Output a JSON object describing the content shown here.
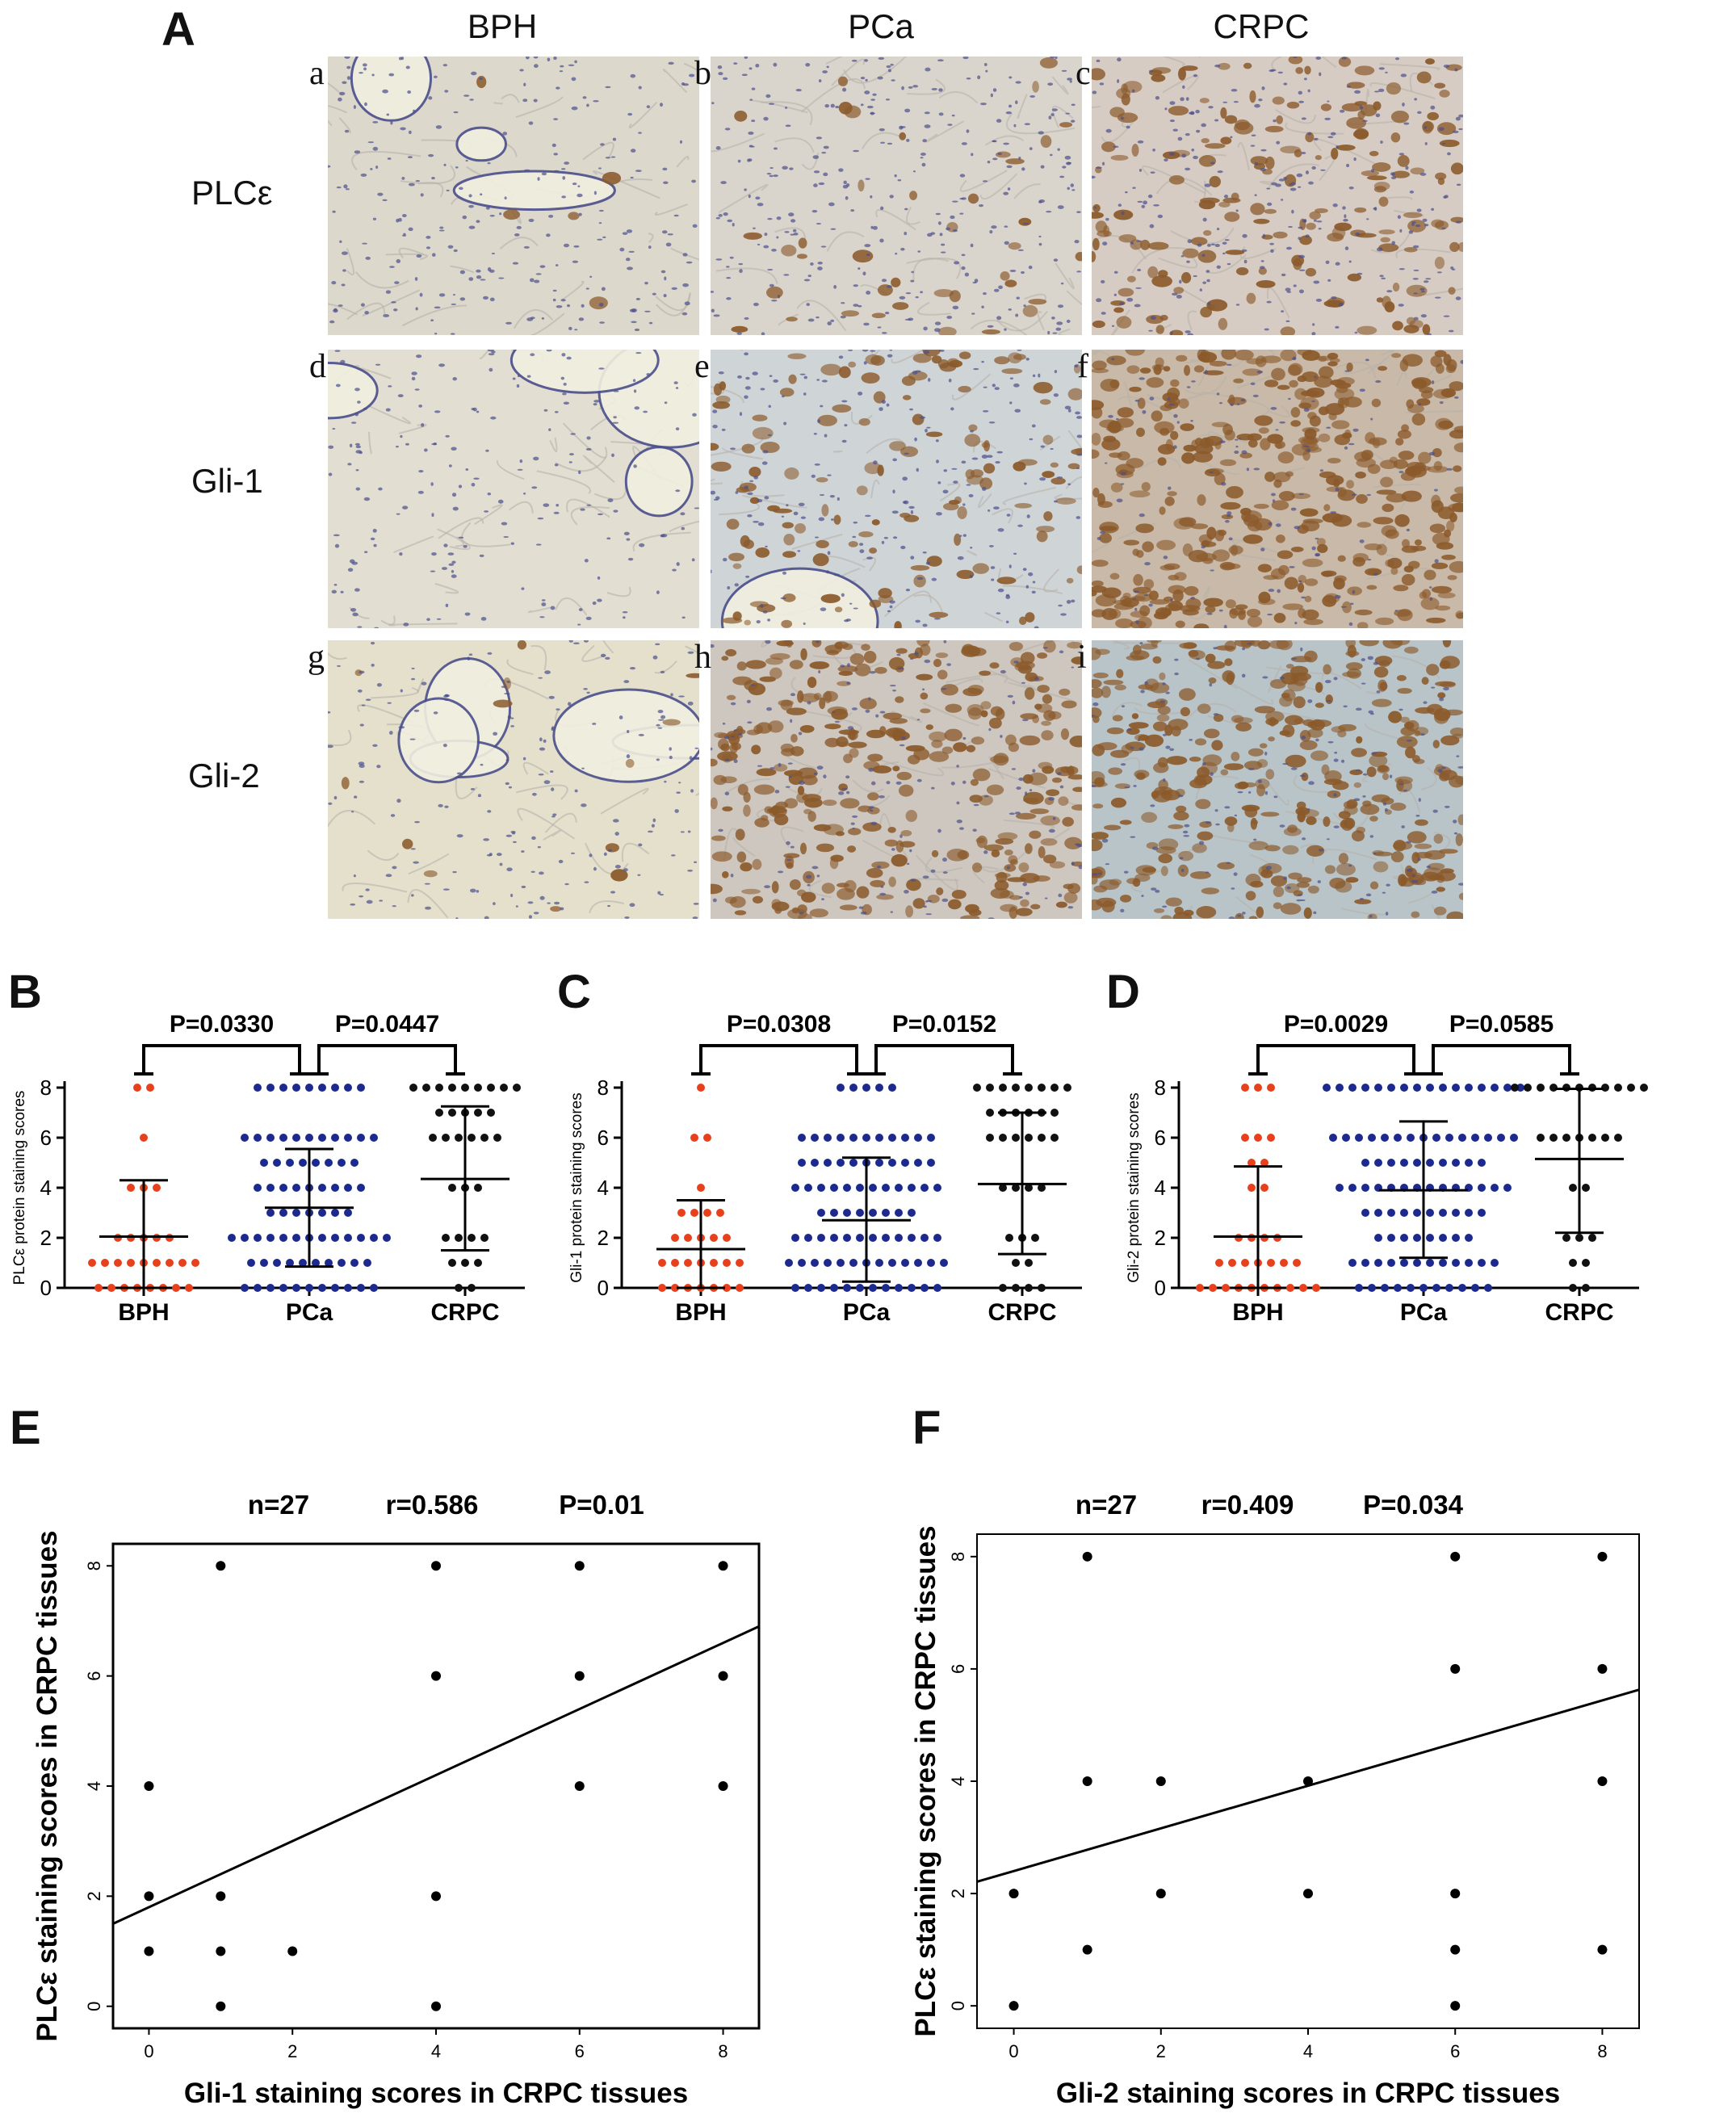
{
  "figure_A": {
    "panel_letter": "A",
    "columns": [
      "BPH",
      "PCa",
      "CRPC"
    ],
    "rows": [
      "PLCε",
      "Gli-1",
      "Gli-2"
    ],
    "sub_letters": [
      "a",
      "b",
      "c",
      "d",
      "e",
      "f",
      "g",
      "h",
      "i"
    ],
    "colors": {
      "tissue_bg": "#e6e2d8",
      "hematoxylin": "#4b4f8c",
      "dab": "#8b5a2b"
    }
  },
  "panels": {
    "B": {
      "letter": "B"
    },
    "C": {
      "letter": "C"
    },
    "D": {
      "letter": "D"
    },
    "E": {
      "letter": "E"
    },
    "F": {
      "letter": "F"
    }
  },
  "chart_data": [
    {
      "id": "B",
      "type": "scatter",
      "ylabel": "PLCε protein staining scores",
      "categories": [
        "BPH",
        "PCa",
        "CRPC"
      ],
      "ylim": [
        0,
        8
      ],
      "yticks": [
        0,
        2,
        4,
        6,
        8
      ],
      "colors": [
        "#e8401c",
        "#1b2a8c",
        "#111111"
      ],
      "means": [
        2.05,
        3.2,
        4.35
      ],
      "sd_low": [
        0.0,
        0.85,
        1.5
      ],
      "sd_high": [
        4.3,
        5.55,
        7.25
      ],
      "points": [
        [
          [
            8,
            2
          ],
          [
            6,
            1
          ],
          [
            4,
            3
          ],
          [
            2,
            5
          ],
          [
            1,
            9
          ],
          [
            0,
            8
          ]
        ],
        [
          [
            8,
            9
          ],
          [
            6,
            11
          ],
          [
            5,
            8
          ],
          [
            4,
            9
          ],
          [
            3,
            7
          ],
          [
            2,
            13
          ],
          [
            1,
            10
          ],
          [
            0,
            11
          ]
        ],
        [
          [
            8,
            9
          ],
          [
            7,
            5
          ],
          [
            6,
            6
          ],
          [
            4,
            3
          ],
          [
            2,
            4
          ],
          [
            1,
            3
          ],
          [
            0,
            2
          ]
        ]
      ],
      "brackets": [
        {
          "from": 0,
          "to": 1,
          "label": "P=0.0330"
        },
        {
          "from": 1,
          "to": 2,
          "label": "P=0.0447"
        }
      ]
    },
    {
      "id": "C",
      "type": "scatter",
      "ylabel": "Gli-1 protein staining scores",
      "categories": [
        "BPH",
        "PCa",
        "CRPC"
      ],
      "ylim": [
        0,
        8
      ],
      "yticks": [
        0,
        2,
        4,
        6,
        8
      ],
      "colors": [
        "#e8401c",
        "#1b2a8c",
        "#111111"
      ],
      "means": [
        1.55,
        2.7,
        4.15
      ],
      "sd_low": [
        0.0,
        0.25,
        1.35
      ],
      "sd_high": [
        3.5,
        5.2,
        7.0
      ],
      "points": [
        [
          [
            8,
            1
          ],
          [
            6,
            2
          ],
          [
            4,
            1
          ],
          [
            3,
            4
          ],
          [
            2,
            5
          ],
          [
            1,
            7
          ],
          [
            0,
            7
          ]
        ],
        [
          [
            8,
            5
          ],
          [
            6,
            11
          ],
          [
            5,
            11
          ],
          [
            4,
            12
          ],
          [
            3,
            8
          ],
          [
            2,
            12
          ],
          [
            1,
            13
          ],
          [
            0,
            12
          ]
        ],
        [
          [
            8,
            8
          ],
          [
            7,
            6
          ],
          [
            6,
            6
          ],
          [
            4,
            4
          ],
          [
            2,
            3
          ],
          [
            1,
            2
          ],
          [
            0,
            4
          ]
        ]
      ],
      "brackets": [
        {
          "from": 0,
          "to": 1,
          "label": "P=0.0308"
        },
        {
          "from": 1,
          "to": 2,
          "label": "P=0.0152"
        }
      ]
    },
    {
      "id": "D",
      "type": "scatter",
      "ylabel": "Gli-2 protein staining scores",
      "categories": [
        "BPH",
        "PCa",
        "CRPC"
      ],
      "ylim": [
        0,
        8
      ],
      "yticks": [
        0,
        2,
        4,
        6,
        8
      ],
      "colors": [
        "#e8401c",
        "#1b2a8c",
        "#111111"
      ],
      "means": [
        2.05,
        3.9,
        5.15
      ],
      "sd_low": [
        0.0,
        1.2,
        2.2
      ],
      "sd_high": [
        4.85,
        6.65,
        7.95
      ],
      "points": [
        [
          [
            8,
            3
          ],
          [
            6,
            3
          ],
          [
            5,
            2
          ],
          [
            4,
            2
          ],
          [
            2,
            4
          ],
          [
            1,
            7
          ],
          [
            0,
            10
          ]
        ],
        [
          [
            8,
            16
          ],
          [
            6,
            15
          ],
          [
            5,
            10
          ],
          [
            4,
            14
          ],
          [
            3,
            10
          ],
          [
            2,
            8
          ],
          [
            1,
            12
          ],
          [
            0,
            11
          ]
        ],
        [
          [
            8,
            11
          ],
          [
            6,
            7
          ],
          [
            4,
            2
          ],
          [
            2,
            3
          ],
          [
            1,
            2
          ],
          [
            0,
            2
          ]
        ]
      ],
      "brackets": [
        {
          "from": 0,
          "to": 1,
          "label": "P=0.0029"
        },
        {
          "from": 1,
          "to": 2,
          "label": "P=0.0585"
        }
      ]
    },
    {
      "id": "E",
      "type": "scatter",
      "xlabel": "Gli-1 staining scores in CRPC tissues",
      "ylabel": "PLCε staining scores in CRPC tissues",
      "xlim": [
        -0.5,
        8.5
      ],
      "ylim": [
        -0.4,
        8.4
      ],
      "xticks": [
        0,
        2,
        4,
        6,
        8
      ],
      "yticks": [
        0,
        2,
        4,
        6,
        8
      ],
      "stats": [
        "n=27",
        "r=0.586",
        "P=0.01"
      ],
      "points": [
        [
          0,
          4
        ],
        [
          0,
          2
        ],
        [
          0,
          1
        ],
        [
          1,
          8
        ],
        [
          1,
          2
        ],
        [
          1,
          1
        ],
        [
          1,
          0
        ],
        [
          2,
          1
        ],
        [
          4,
          8
        ],
        [
          4,
          6
        ],
        [
          4,
          2
        ],
        [
          4,
          0
        ],
        [
          6,
          8
        ],
        [
          6,
          6
        ],
        [
          6,
          4
        ],
        [
          8,
          8
        ],
        [
          8,
          6
        ],
        [
          8,
          4
        ]
      ],
      "fit": {
        "intercept": 1.8,
        "slope": 0.6
      }
    },
    {
      "id": "F",
      "type": "scatter",
      "xlabel": "Gli-2 staining scores in CRPC tissues",
      "ylabel": "PLCε staining scores in CRPC tissues",
      "xlim": [
        -0.5,
        8.5
      ],
      "ylim": [
        -0.4,
        8.4
      ],
      "xticks": [
        0,
        2,
        4,
        6,
        8
      ],
      "yticks": [
        0,
        2,
        4,
        6,
        8
      ],
      "stats": [
        "n=27",
        "r=0.409",
        "P=0.034"
      ],
      "points": [
        [
          0,
          2
        ],
        [
          0,
          0
        ],
        [
          1,
          8
        ],
        [
          1,
          4
        ],
        [
          1,
          1
        ],
        [
          2,
          4
        ],
        [
          2,
          2
        ],
        [
          4,
          4
        ],
        [
          4,
          2
        ],
        [
          6,
          8
        ],
        [
          6,
          6
        ],
        [
          6,
          2
        ],
        [
          6,
          1
        ],
        [
          6,
          0
        ],
        [
          8,
          8
        ],
        [
          8,
          6
        ],
        [
          8,
          4
        ],
        [
          8,
          1
        ]
      ],
      "fit": {
        "intercept": 2.4,
        "slope": 0.38
      }
    }
  ]
}
